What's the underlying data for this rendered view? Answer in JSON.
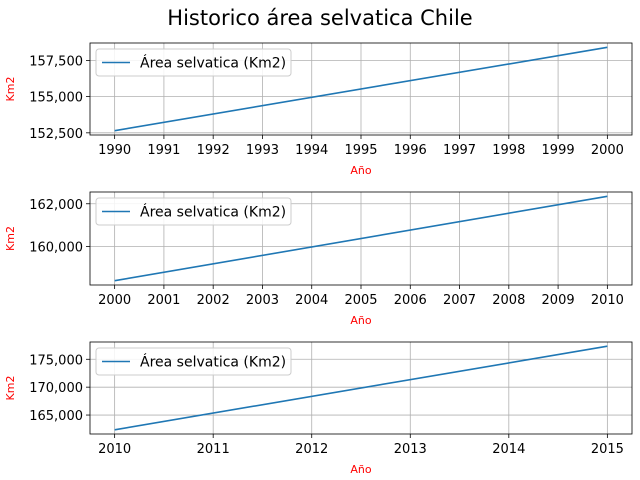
{
  "title": "Historico área selvatica Chile",
  "chart_data": [
    {
      "type": "line",
      "x": [
        1990,
        2000
      ],
      "series": [
        {
          "name": "Área selvatica (Km2)",
          "values": [
            152650,
            158400
          ]
        }
      ],
      "xticks": [
        "1990",
        "1991",
        "1992",
        "1993",
        "1994",
        "1995",
        "1996",
        "1997",
        "1998",
        "1999",
        "2000"
      ],
      "yticks": [
        "152,500",
        "155,000",
        "157,500"
      ],
      "xlim": [
        1989.5,
        2000.5
      ],
      "ylim": [
        152350,
        158700
      ],
      "xlabel": "Año",
      "ylabel": "Km2",
      "grid": true,
      "legend": "top-left"
    },
    {
      "type": "line",
      "x": [
        2000,
        2010
      ],
      "series": [
        {
          "name": "Área selvatica (Km2)",
          "values": [
            158400,
            162350
          ]
        }
      ],
      "xticks": [
        "2000",
        "2001",
        "2002",
        "2003",
        "2004",
        "2005",
        "2006",
        "2007",
        "2008",
        "2009",
        "2010"
      ],
      "yticks": [
        "160,000",
        "162,000"
      ],
      "xlim": [
        1999.5,
        2010.5
      ],
      "ylim": [
        158200,
        162550
      ],
      "xlabel": "Año",
      "ylabel": "Km2",
      "grid": true,
      "legend": "top-left"
    },
    {
      "type": "line",
      "x": [
        2010,
        2015
      ],
      "series": [
        {
          "name": "Área selvatica (Km2)",
          "values": [
            162350,
            177350
          ]
        }
      ],
      "xticks": [
        "2010",
        "2011",
        "2012",
        "2013",
        "2014",
        "2015"
      ],
      "yticks": [
        "165,000",
        "170,000",
        "175,000"
      ],
      "xlim": [
        2009.75,
        2015.25
      ],
      "ylim": [
        161600,
        178100
      ],
      "xlabel": "Año",
      "ylabel": "Km2",
      "grid": true,
      "legend": "top-left"
    }
  ],
  "colors": {
    "line": "#1f77b4",
    "grid": "#b0b0b0",
    "axis_label": "#ff0000"
  }
}
